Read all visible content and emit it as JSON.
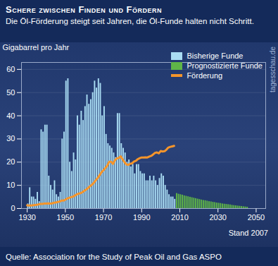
{
  "chart_data": {
    "type": "bar",
    "title": "Schere zwischen Finden und Fördern",
    "subtitle": "Die Öl-Förderung steigt seit Jahren, die Öl-Funde halten nicht Schritt.",
    "y_label": "Gigabarrel pro Jahr",
    "source": "Quelle: Association for the Study of Peak Oil and Gas ASPO",
    "annotations": [
      "Stand 2007",
      "tagesschau.de"
    ],
    "x": [
      1930,
      1931,
      1932,
      1933,
      1934,
      1935,
      1936,
      1937,
      1938,
      1939,
      1940,
      1941,
      1942,
      1943,
      1944,
      1945,
      1946,
      1947,
      1948,
      1949,
      1950,
      1951,
      1952,
      1953,
      1954,
      1955,
      1956,
      1957,
      1958,
      1959,
      1960,
      1961,
      1962,
      1963,
      1964,
      1965,
      1966,
      1967,
      1968,
      1969,
      1970,
      1971,
      1972,
      1973,
      1974,
      1975,
      1976,
      1977,
      1978,
      1979,
      1980,
      1981,
      1982,
      1983,
      1984,
      1985,
      1986,
      1987,
      1988,
      1989,
      1990,
      1991,
      1992,
      1993,
      1994,
      1995,
      1996,
      1997,
      1998,
      1999,
      2000,
      2001,
      2002,
      2003,
      2004,
      2005,
      2006,
      2007,
      2008,
      2009,
      2010,
      2011,
      2012,
      2013,
      2014,
      2015,
      2016,
      2017,
      2018,
      2019,
      2020,
      2021,
      2022,
      2023,
      2024,
      2025,
      2026,
      2027,
      2028,
      2029,
      2030,
      2031,
      2032,
      2033,
      2034,
      2035,
      2036,
      2037,
      2038,
      2039,
      2040,
      2041,
      2042,
      2043,
      2044,
      2045
    ],
    "series": [
      {
        "name": "Bisherige Funde",
        "type": "bar",
        "color": "#a9dcf3",
        "values": [
          2,
          9,
          5,
          5,
          4,
          7,
          3,
          34,
          33,
          36,
          36,
          14,
          10,
          8,
          12,
          6,
          5,
          7,
          30,
          33,
          55,
          56,
          20,
          16,
          24,
          21,
          40,
          36,
          42,
          38,
          44,
          49,
          45,
          47,
          50,
          55,
          52,
          56,
          54,
          40,
          44,
          32,
          28,
          27,
          26,
          24,
          22,
          41,
          41,
          28,
          26,
          24,
          20,
          21,
          18,
          19,
          15,
          19,
          19,
          16,
          15,
          15,
          12,
          12,
          14,
          12,
          14,
          12,
          10,
          13,
          15,
          14,
          10,
          8,
          6,
          5,
          5,
          4,
          null,
          null,
          null,
          null,
          null,
          null,
          null,
          null,
          null,
          null,
          null,
          null,
          null,
          null,
          null,
          null,
          null,
          null,
          null,
          null,
          null,
          null,
          null,
          null,
          null,
          null,
          null,
          null,
          null,
          null,
          null,
          null,
          null,
          null,
          null,
          null,
          null,
          null
        ]
      },
      {
        "name": "Prognostizierte Funde",
        "type": "bar",
        "color": "#5fb548",
        "values": [
          null,
          null,
          null,
          null,
          null,
          null,
          null,
          null,
          null,
          null,
          null,
          null,
          null,
          null,
          null,
          null,
          null,
          null,
          null,
          null,
          null,
          null,
          null,
          null,
          null,
          null,
          null,
          null,
          null,
          null,
          null,
          null,
          null,
          null,
          null,
          null,
          null,
          null,
          null,
          null,
          null,
          null,
          null,
          null,
          null,
          null,
          null,
          null,
          null,
          null,
          null,
          null,
          null,
          null,
          null,
          null,
          null,
          null,
          null,
          null,
          null,
          null,
          null,
          null,
          null,
          null,
          null,
          null,
          null,
          null,
          null,
          null,
          null,
          null,
          null,
          null,
          null,
          null,
          6.5,
          6.2,
          6,
          5.8,
          5.5,
          5.3,
          5.1,
          4.9,
          4.7,
          4.5,
          4.3,
          4.1,
          3.9,
          3.7,
          3.5,
          3.4,
          3.2,
          3.0,
          2.9,
          2.7,
          2.6,
          2.4,
          2.3,
          2.2,
          2.0,
          1.9,
          1.8,
          1.7,
          1.6,
          1.4,
          1.3,
          1.2,
          1.1,
          1.0,
          0.9,
          0.8,
          0.7,
          0.6
        ]
      },
      {
        "name": "Förderung",
        "type": "line",
        "color": "#f5952b",
        "values": [
          1.4,
          1.3,
          1.3,
          1.4,
          1.5,
          1.6,
          1.8,
          2.0,
          2.0,
          2.1,
          2.1,
          2.2,
          2.1,
          2.2,
          2.5,
          2.6,
          2.8,
          3.0,
          3.4,
          3.4,
          3.8,
          4.3,
          4.6,
          4.9,
          5.1,
          5.6,
          6.1,
          6.4,
          6.6,
          7.1,
          7.7,
          8.2,
          8.9,
          9.6,
          10.3,
          11.2,
          12.2,
          13.2,
          14.4,
          15.7,
          16.5,
          17.5,
          18.5,
          20.2,
          20.2,
          19.2,
          20.8,
          21.6,
          21.8,
          22.5,
          21.2,
          20.0,
          19.0,
          18.8,
          19.3,
          19.5,
          20.3,
          20.6,
          21.3,
          21.7,
          22.0,
          22.0,
          22.1,
          22.0,
          22.4,
          22.7,
          23.3,
          24.0,
          24.2,
          23.8,
          24.8,
          24.6,
          24.7,
          25.4,
          26.3,
          26.6,
          26.8,
          27.0,
          null,
          null,
          null,
          null,
          null,
          null,
          null,
          null,
          null,
          null,
          null,
          null,
          null,
          null,
          null,
          null,
          null,
          null,
          null,
          null,
          null,
          null,
          null,
          null,
          null,
          null,
          null,
          null,
          null,
          null,
          null,
          null,
          null,
          null,
          null,
          null,
          null,
          null
        ]
      }
    ],
    "xlim": [
      1927,
      2055
    ],
    "xticks": [
      1930,
      1950,
      1970,
      1990,
      2010,
      2030,
      2050
    ],
    "ylim": [
      0,
      63
    ],
    "yticks": [
      0,
      10,
      20,
      30,
      40,
      50,
      60
    ],
    "grid": true,
    "legend": "top-right"
  }
}
